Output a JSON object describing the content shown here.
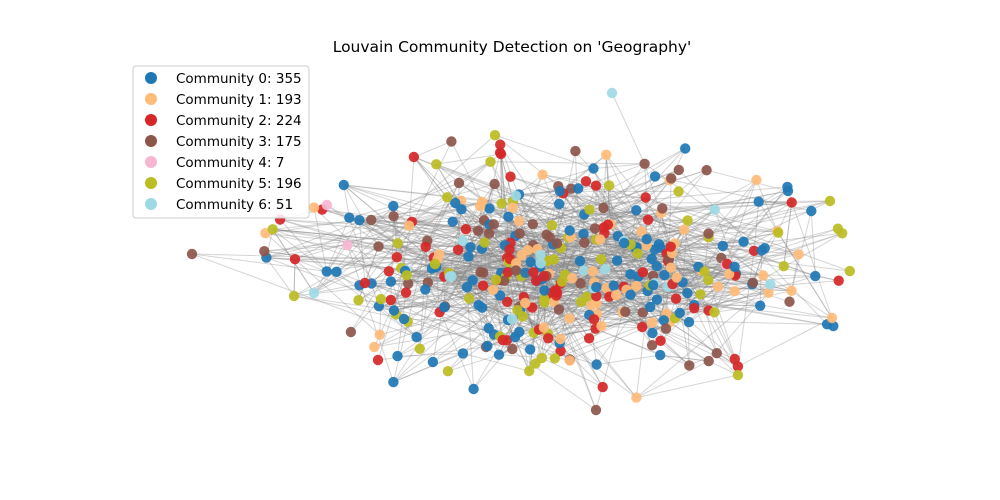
{
  "chart_data": {
    "type": "network",
    "title": "Louvain Community Detection on 'Geography'",
    "legend_position": "top-left",
    "grid": false,
    "axes_visible": false,
    "edge_color": "#888888",
    "communities": [
      {
        "label": "Community 0: 355",
        "count": 355,
        "color": "#1f77b4"
      },
      {
        "label": "Community 1: 193",
        "count": 193,
        "color": "#ffbb78"
      },
      {
        "label": "Community 2: 224",
        "count": 224,
        "color": "#d62728"
      },
      {
        "label": "Community 3: 175",
        "count": 175,
        "color": "#8c564b"
      },
      {
        "label": "Community 4: 7",
        "count": 7,
        "color": "#f7b6d2"
      },
      {
        "label": "Community 5: 196",
        "count": 196,
        "color": "#bcbd22"
      },
      {
        "label": "Community 6: 51",
        "count": 51,
        "color": "#9edae5"
      }
    ]
  }
}
